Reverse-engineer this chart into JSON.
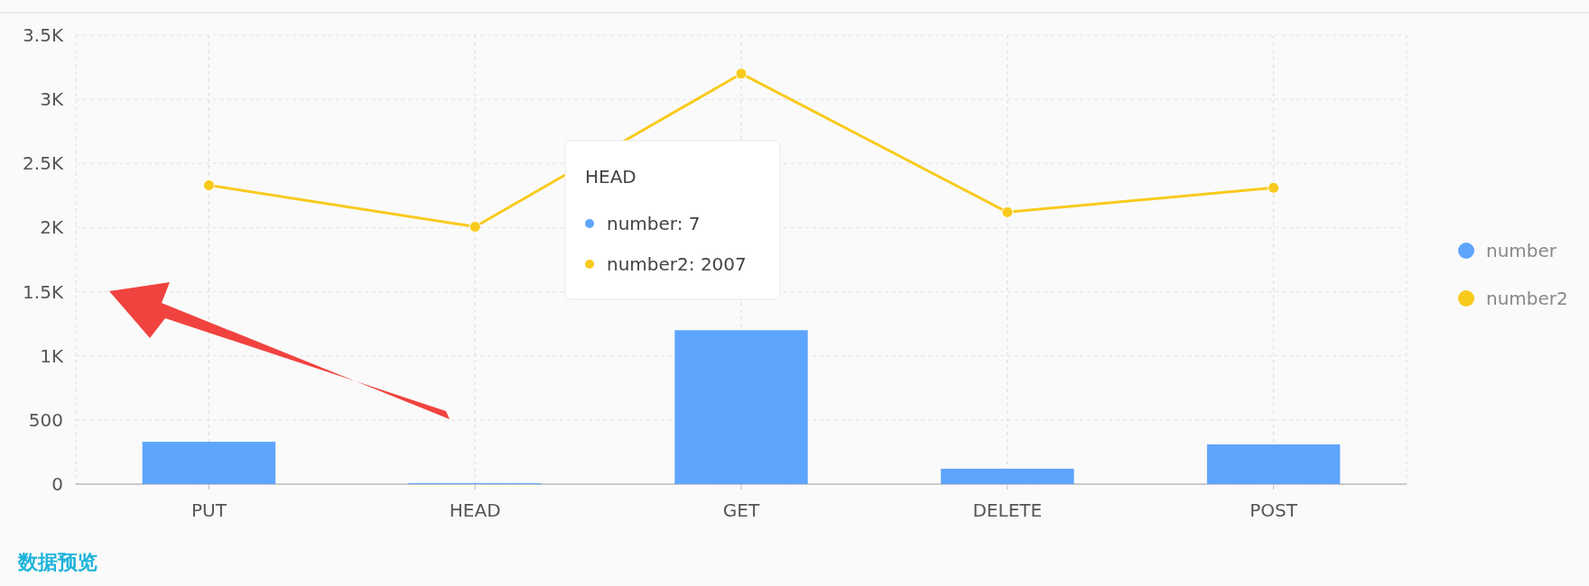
{
  "chart_data": {
    "type": "bar",
    "categories": [
      "PUT",
      "HEAD",
      "GET",
      "DELETE",
      "POST"
    ],
    "series": [
      {
        "name": "number",
        "color": "#5ea5fd",
        "values": [
          330,
          7,
          1200,
          120,
          310
        ]
      },
      {
        "name": "number2",
        "type": "line",
        "color": "#f8ca1c",
        "values": [
          2330,
          2007,
          3200,
          2120,
          2310
        ]
      }
    ],
    "ylim": [
      0,
      3500
    ],
    "yticks": [
      0,
      500,
      {
        "value": 1000,
        "label": "1K"
      },
      {
        "value": 1500,
        "label": "1.5K"
      },
      {
        "value": 2000,
        "label": "2K"
      },
      {
        "value": 2500,
        "label": "2.5K"
      },
      {
        "value": 3000,
        "label": "3K"
      },
      {
        "value": 3500,
        "label": "3.5K"
      }
    ],
    "grid": true,
    "legend": "right",
    "marker": "circle",
    "annotations": [
      "HEAD",
      "number: 7",
      "number2: 2007",
      "数据预览"
    ]
  }
}
